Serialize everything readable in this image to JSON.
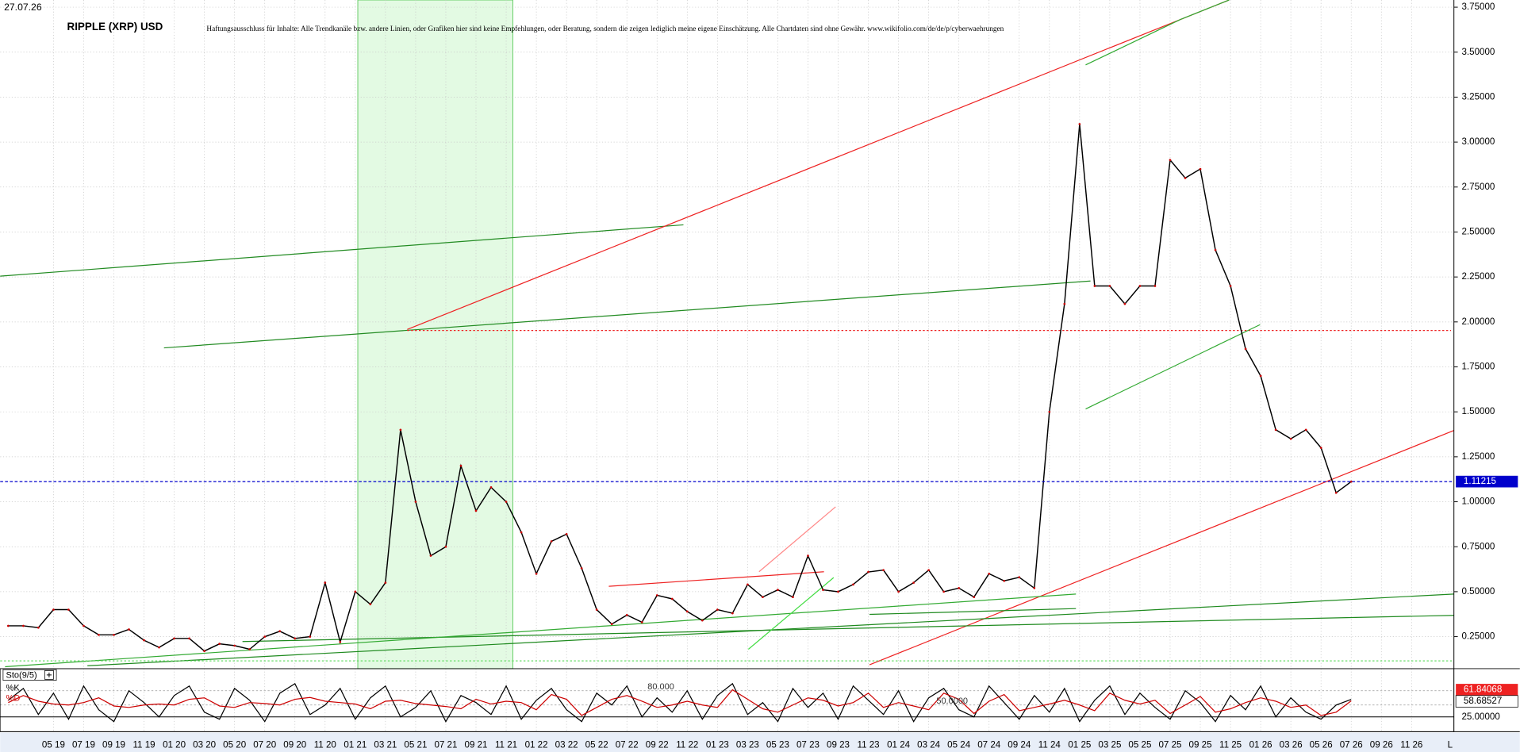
{
  "chart_data": [
    {
      "type": "line",
      "date": "27.07.26",
      "title": "RIPPLE (XRP) USD",
      "disclaimer": "Haftungsausschluss für Inhalte: Alle Trendkanäle bzw. andere Linien, oder Grafiken hier sind keine Empfehlungen, oder Beratung, sondern die zeigen lediglich meine eigene Einschätzung. Alle Chartdaten sind ohne Gewähr.  www.wikifolio.com/de/de/p/cyberwaehrungen",
      "axis_end_label": "L",
      "categories": [
        null,
        null,
        null,
        "05 19",
        null,
        "07 19",
        null,
        "09 19",
        null,
        "11 19",
        null,
        "01 20",
        null,
        "03 20",
        null,
        "05 20",
        null,
        "07 20",
        null,
        "09 20",
        null,
        "11 20",
        null,
        "01 21",
        null,
        "03 21",
        null,
        "05 21",
        null,
        "07 21",
        null,
        "09 21",
        null,
        "11 21",
        null,
        "01 22",
        null,
        "03 22",
        null,
        "05 22",
        null,
        "07 22",
        null,
        "09 22",
        null,
        "11 22",
        null,
        "01 23",
        null,
        "03 23",
        null,
        "05 23",
        null,
        "07 23",
        null,
        "09 23",
        null,
        "11 23",
        null,
        "01 24",
        null,
        "03 24",
        null,
        "05 24",
        null,
        "07 24",
        null,
        "09 24",
        null,
        "11 24",
        null,
        "01 25",
        null,
        "03 25",
        null,
        "05 25",
        null,
        "07 25",
        null,
        "09 25",
        null,
        "11 25",
        null,
        "01 26",
        null,
        "03 26",
        null,
        "05 26",
        null,
        "07 26",
        null,
        "09 26",
        null,
        "11 26",
        null
      ],
      "values": [
        0.31,
        0.31,
        0.3,
        0.4,
        0.4,
        0.31,
        0.26,
        0.26,
        0.29,
        0.23,
        0.19,
        0.24,
        0.24,
        0.17,
        0.21,
        0.2,
        0.18,
        0.25,
        0.28,
        0.24,
        0.25,
        0.55,
        0.22,
        0.5,
        0.43,
        0.55,
        1.4,
        1.0,
        0.7,
        0.75,
        1.2,
        0.95,
        1.08,
        1.0,
        0.83,
        0.6,
        0.78,
        0.82,
        0.63,
        0.4,
        0.32,
        0.37,
        0.33,
        0.48,
        0.46,
        0.39,
        0.34,
        0.4,
        0.38,
        0.54,
        0.47,
        0.51,
        0.47,
        0.7,
        0.51,
        0.5,
        0.54,
        0.61,
        0.62,
        0.5,
        0.55,
        0.62,
        0.5,
        0.52,
        0.47,
        0.6,
        0.56,
        0.58,
        0.52,
        1.5,
        2.1,
        3.1,
        2.2,
        2.2,
        2.1,
        2.2,
        2.2,
        2.9,
        2.8,
        2.85,
        2.4,
        2.2,
        1.85,
        1.7,
        1.4,
        1.35,
        1.4,
        1.3,
        1.05,
        1.11215,
        null,
        null,
        null,
        null,
        null
      ],
      "color": "#000000",
      "last_price_color": "#0000cc",
      "ylim": [
        0.072,
        3.79
      ],
      "yticks": [
        {
          "value": 0.25,
          "label": "0.25000"
        },
        {
          "value": 0.5,
          "label": "0.50000"
        },
        {
          "value": 0.75,
          "label": "0.75000"
        },
        {
          "value": 1.0,
          "label": "1.00000"
        },
        {
          "value": 1.25,
          "label": "1.25000"
        },
        {
          "value": 1.5,
          "label": "1.50000"
        },
        {
          "value": 1.75,
          "label": "1.75000"
        },
        {
          "value": 2.0,
          "label": "2.00000"
        },
        {
          "value": 2.25,
          "label": "2.25000"
        },
        {
          "value": 2.5,
          "label": "2.50000"
        },
        {
          "value": 2.75,
          "label": "2.75000"
        },
        {
          "value": 3.0,
          "label": "3.00000"
        },
        {
          "value": 3.25,
          "label": "3.25000"
        },
        {
          "value": 3.5,
          "label": "3.50000"
        },
        {
          "value": 3.75,
          "label": "3.75000"
        }
      ],
      "grid": true
    },
    {
      "type": "stochastic",
      "title": "Sto(9/5)",
      "series": [
        {
          "name": "%K",
          "color": "#000000",
          "values": [
            60,
            85,
            30,
            75,
            20,
            90,
            40,
            15,
            80,
            55,
            25,
            70,
            90,
            35,
            20,
            85,
            60,
            15,
            75,
            95,
            30,
            50,
            85,
            20,
            65,
            90,
            25,
            45,
            80,
            15,
            70,
            55,
            30,
            90,
            20,
            60,
            85,
            40,
            15,
            75,
            50,
            90,
            25,
            65,
            35,
            80,
            20,
            70,
            95,
            30,
            55,
            15,
            85,
            45,
            75,
            20,
            90,
            60,
            30,
            80,
            15,
            65,
            85,
            40,
            25,
            90,
            55,
            20,
            70,
            35,
            85,
            15,
            60,
            90,
            30,
            75,
            45,
            20,
            80,
            55,
            15,
            70,
            40,
            90,
            25,
            65,
            35,
            20,
            50,
            61.84068,
            null,
            null,
            null,
            null,
            null
          ]
        },
        {
          "name": "%D",
          "color": "#cc0000",
          "values": [
            55,
            70,
            58,
            52,
            50,
            55,
            65,
            48,
            45,
            50,
            52,
            50,
            62,
            65,
            48,
            45,
            55,
            53,
            50,
            62,
            66,
            58,
            55,
            52,
            42,
            58,
            60,
            53,
            50,
            47,
            42,
            62,
            52,
            58,
            55,
            40,
            72,
            62,
            28,
            45,
            62,
            70,
            58,
            45,
            50,
            58,
            50,
            45,
            82,
            62,
            42,
            35,
            50,
            65,
            60,
            48,
            55,
            75,
            45,
            55,
            48,
            40,
            75,
            62,
            32,
            58,
            72,
            38,
            45,
            52,
            60,
            50,
            38,
            75,
            60,
            52,
            60,
            32,
            50,
            68,
            35,
            42,
            55,
            65,
            58,
            45,
            50,
            28,
            35,
            58.68527,
            null,
            null,
            null,
            null,
            null
          ]
        }
      ],
      "ylim": [
        0,
        100
      ],
      "yticks": [
        {
          "value": 25,
          "label": "25.00000"
        }
      ],
      "levels": [
        {
          "value": 80,
          "label": "80.000"
        },
        {
          "value": 50,
          "label": "50.0000"
        }
      ]
    }
  ]
}
